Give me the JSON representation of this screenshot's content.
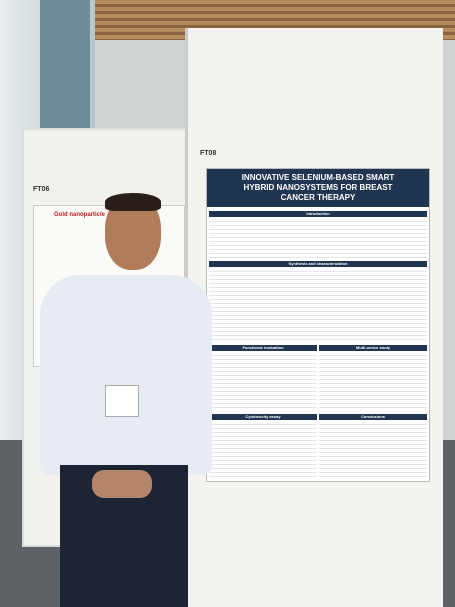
{
  "boards": {
    "left_label": "FT06",
    "right_label": "FT08"
  },
  "left_poster": {
    "title": "Gold nanoparticle"
  },
  "poster": {
    "title": "INNOVATIVE SELENIUM-BASED SMART HYBRID NANOSYSTEMS FOR BREAST CANCER THERAPY",
    "sections": [
      "Introduction",
      "Synthesis and characterization",
      "Functional evaluation",
      "Multi-omics study",
      "Cytotoxicity assay",
      "Conclusions"
    ]
  }
}
